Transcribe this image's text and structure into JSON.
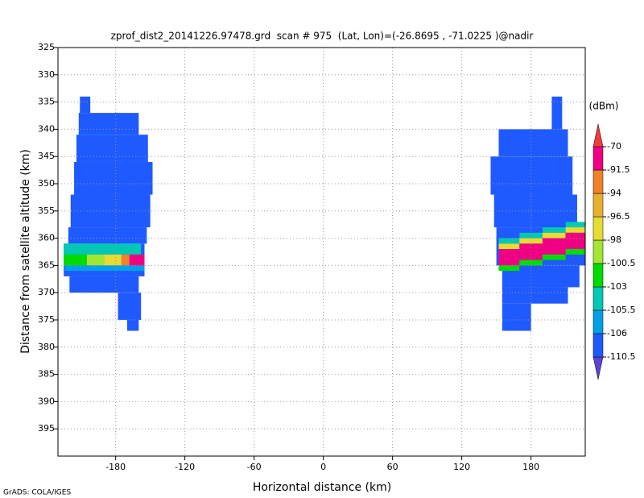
{
  "chart_data": {
    "type": "heatmap",
    "title": "zprof_dist2_20141226.97478.grd  scan # 975  (Lat, Lon)=(-26.8695 , -71.0225 )@nadir",
    "x_label": "Horizontal distance (km)",
    "y_label": "Distance from satellite altitude (km)",
    "colorbar_label": "(dBm)",
    "footer": "GrADS: COLA/IGES",
    "xlim": [
      -230,
      227
    ],
    "ylim": [
      325,
      400
    ],
    "xticks": [
      -180,
      -120,
      -60,
      0,
      60,
      120,
      180
    ],
    "yticks": [
      325,
      330,
      335,
      340,
      345,
      350,
      355,
      360,
      365,
      370,
      375,
      380,
      385,
      390,
      395
    ],
    "grid": true,
    "levels": [
      -110.5,
      -106,
      -105.5,
      -103,
      -100.5,
      -98,
      -96.5,
      -94,
      -91.5,
      -70
    ],
    "colors": [
      "#5a46d2",
      "#1e5aff",
      "#00a0e6",
      "#00c8b4",
      "#00dc00",
      "#a0e632",
      "#e6dc32",
      "#e6af2d",
      "#f08228",
      "#f00082",
      "#f03c3c"
    ],
    "cells": [
      {
        "x": [
          -211,
          -202
        ],
        "y": [
          334,
          337
        ],
        "value": -108
      },
      {
        "x": [
          -212,
          -160
        ],
        "y": [
          337,
          341
        ],
        "value": -108
      },
      {
        "x": [
          -214,
          -152
        ],
        "y": [
          341,
          346
        ],
        "value": -108
      },
      {
        "x": [
          -216,
          -148
        ],
        "y": [
          346,
          352
        ],
        "value": -108
      },
      {
        "x": [
          -219,
          -150
        ],
        "y": [
          352,
          358
        ],
        "value": -108
      },
      {
        "x": [
          -221,
          -153
        ],
        "y": [
          358,
          361
        ],
        "value": -108
      },
      {
        "x": [
          -225,
          -155
        ],
        "y": [
          361,
          367
        ],
        "value": -108
      },
      {
        "x": [
          -220,
          -160
        ],
        "y": [
          367,
          370
        ],
        "value": -108
      },
      {
        "x": [
          -178,
          -158
        ],
        "y": [
          370,
          375
        ],
        "value": -108
      },
      {
        "x": [
          -170,
          -160
        ],
        "y": [
          375,
          377
        ],
        "value": -108
      },
      {
        "x": [
          -225,
          -158
        ],
        "y": [
          361,
          363
        ],
        "value": -104
      },
      {
        "x": [
          -225,
          -205
        ],
        "y": [
          363,
          365
        ],
        "value": -102
      },
      {
        "x": [
          -205,
          -190
        ],
        "y": [
          363,
          365
        ],
        "value": -99
      },
      {
        "x": [
          -190,
          -175
        ],
        "y": [
          363,
          365
        ],
        "value": -97
      },
      {
        "x": [
          -175,
          -168
        ],
        "y": [
          363,
          365
        ],
        "value": -93
      },
      {
        "x": [
          -168,
          -155
        ],
        "y": [
          363,
          365
        ],
        "value": -85
      },
      {
        "x": [
          -224,
          -155
        ],
        "y": [
          365,
          366
        ],
        "value": -105.7
      },
      {
        "x": [
          198,
          207
        ],
        "y": [
          334,
          340
        ],
        "value": -108
      },
      {
        "x": [
          152,
          212
        ],
        "y": [
          340,
          345
        ],
        "value": -108
      },
      {
        "x": [
          145,
          216
        ],
        "y": [
          345,
          352
        ],
        "value": -108
      },
      {
        "x": [
          148,
          220
        ],
        "y": [
          352,
          358
        ],
        "value": -108
      },
      {
        "x": [
          150,
          227
        ],
        "y": [
          358,
          365
        ],
        "value": -108
      },
      {
        "x": [
          155,
          222
        ],
        "y": [
          365,
          369
        ],
        "value": -108
      },
      {
        "x": [
          155,
          212
        ],
        "y": [
          369,
          372
        ],
        "value": -108
      },
      {
        "x": [
          155,
          180
        ],
        "y": [
          372,
          377
        ],
        "value": -108
      },
      {
        "x": [
          152,
          170
        ],
        "y": [
          360,
          361
        ],
        "value": -104
      },
      {
        "x": [
          152,
          170
        ],
        "y": [
          361,
          362
        ],
        "value": -97
      },
      {
        "x": [
          152,
          170
        ],
        "y": [
          362,
          365
        ],
        "value": -85
      },
      {
        "x": [
          152,
          170
        ],
        "y": [
          365,
          366
        ],
        "value": -102
      },
      {
        "x": [
          170,
          190
        ],
        "y": [
          359,
          360
        ],
        "value": -104
      },
      {
        "x": [
          170,
          190
        ],
        "y": [
          360,
          361
        ],
        "value": -97
      },
      {
        "x": [
          170,
          190
        ],
        "y": [
          361,
          364
        ],
        "value": -85
      },
      {
        "x": [
          170,
          190
        ],
        "y": [
          364,
          365
        ],
        "value": -102
      },
      {
        "x": [
          190,
          210
        ],
        "y": [
          358,
          359
        ],
        "value": -104
      },
      {
        "x": [
          190,
          210
        ],
        "y": [
          359,
          360
        ],
        "value": -97
      },
      {
        "x": [
          190,
          210
        ],
        "y": [
          360,
          363
        ],
        "value": -85
      },
      {
        "x": [
          190,
          210
        ],
        "y": [
          363,
          364
        ],
        "value": -102
      },
      {
        "x": [
          210,
          227
        ],
        "y": [
          357,
          358
        ],
        "value": -104
      },
      {
        "x": [
          210,
          227
        ],
        "y": [
          358,
          359
        ],
        "value": -97
      },
      {
        "x": [
          210,
          227
        ],
        "y": [
          359,
          362
        ],
        "value": -85
      },
      {
        "x": [
          210,
          227
        ],
        "y": [
          362,
          363
        ],
        "value": -102
      }
    ]
  }
}
